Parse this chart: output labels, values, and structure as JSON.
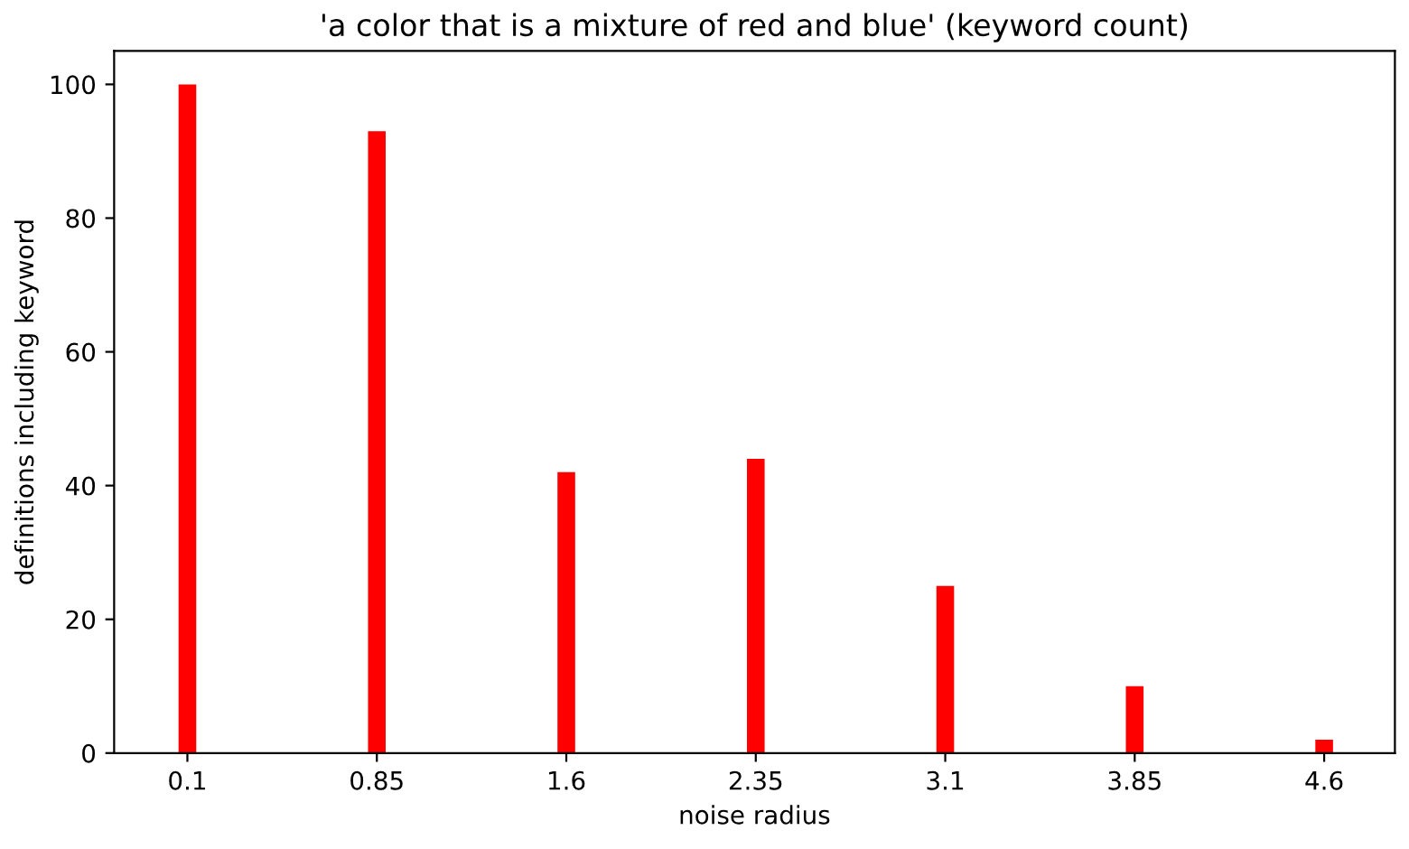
{
  "chart_data": {
    "type": "bar",
    "title": "'a color that is a mixture of red and blue' (keyword count)",
    "xlabel": "noise radius",
    "ylabel": "definitions including keyword",
    "x": [
      0.1,
      0.85,
      1.6,
      2.35,
      3.1,
      3.85,
      4.6
    ],
    "series": [
      {
        "color": "#ff0000",
        "values": [
          100,
          93,
          42,
          44,
          25,
          10,
          2
        ]
      }
    ],
    "xlim": [
      -0.19,
      4.88
    ],
    "xticks": [
      0.1,
      0.85,
      1.6,
      2.35,
      3.1,
      3.85,
      4.6
    ],
    "ylim": [
      0,
      105
    ],
    "yticks": [
      0,
      20,
      40,
      60,
      80,
      100
    ],
    "grid": false,
    "legend": false
  }
}
